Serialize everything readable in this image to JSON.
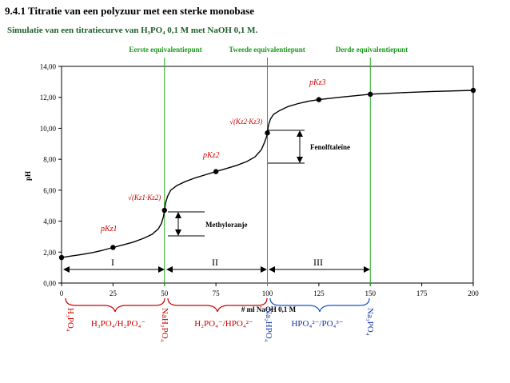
{
  "heading": "9.4.1  Titratie van een polyzuur met een sterke monobase",
  "subtitle": "Simulatie van een titratiecurve van H₃PO₄ 0,1 M met NaOH 0,1 M.",
  "eq_labels": [
    "Eerste equivalentiepunt",
    "Tweede equivalentiepunt",
    "Derde equivalentiepunt"
  ],
  "ylabel": "pH",
  "xlabel": "# ml NaOH 0,1 M",
  "regions": [
    "I",
    "II",
    "III"
  ],
  "indicators": {
    "methyl": "Methyloranje",
    "phenol": "Fenolftaleïne"
  },
  "annotations": {
    "pk1": "pKz1",
    "sqrt12": "√(Kz1·Kz2)",
    "pk2": "pKz2",
    "sqrt23": "√(Kz2·Kz3)",
    "pk3": "pKz3"
  },
  "species": {
    "h3po4": "H₃PO₄",
    "buffer1": "H₃PO₄/H₂PO₄⁻",
    "h2po4": "NaH₂PO₄",
    "buffer2": "H₂PO₄⁻/HPO₄²⁻",
    "hpo4": "Na₂HPO₄",
    "buffer3": "HPO₄²⁻/PO₄³⁻",
    "po4": "Na₃PO₄"
  },
  "colors": {
    "curve": "#000000",
    "eq_line": "#22aa22",
    "eq_text": "#1a9a1a",
    "red_brace": "#cc0000",
    "blue_brace": "#1155cc",
    "species_red": "#cc0000",
    "species_blue": "#1133aa",
    "annotation": "#cc0000"
  },
  "chart_data": {
    "type": "line",
    "xlabel": "# ml NaOH 0,1 M",
    "ylabel": "pH",
    "xlim": [
      0,
      200
    ],
    "ylim": [
      0,
      14
    ],
    "xticks": [
      "0",
      "25",
      "50",
      "75",
      "100",
      "125",
      "150",
      "175",
      "200"
    ],
    "yticks": [
      "0,00",
      "2,00",
      "4,00",
      "6,00",
      "8,00",
      "10,00",
      "12,00",
      "14,00"
    ],
    "equivalence_x": [
      50,
      100,
      150
    ],
    "markers": [
      {
        "x": 0,
        "y": 1.65
      },
      {
        "x": 25,
        "y": 2.3
      },
      {
        "x": 50,
        "y": 4.7
      },
      {
        "x": 75,
        "y": 7.2
      },
      {
        "x": 100,
        "y": 9.7
      },
      {
        "x": 125,
        "y": 11.85
      },
      {
        "x": 150,
        "y": 12.2
      },
      {
        "x": 200,
        "y": 12.45
      }
    ],
    "curve": [
      [
        0,
        1.65
      ],
      [
        5,
        1.75
      ],
      [
        10,
        1.85
      ],
      [
        15,
        1.97
      ],
      [
        20,
        2.12
      ],
      [
        25,
        2.3
      ],
      [
        30,
        2.47
      ],
      [
        35,
        2.65
      ],
      [
        40,
        2.9
      ],
      [
        44,
        3.15
      ],
      [
        47,
        3.5
      ],
      [
        48.5,
        3.85
      ],
      [
        49.5,
        4.3
      ],
      [
        50,
        4.7
      ],
      [
        50.5,
        5.15
      ],
      [
        51.5,
        5.6
      ],
      [
        53,
        6.0
      ],
      [
        56,
        6.3
      ],
      [
        60,
        6.55
      ],
      [
        65,
        6.8
      ],
      [
        70,
        7.0
      ],
      [
        75,
        7.2
      ],
      [
        80,
        7.4
      ],
      [
        85,
        7.6
      ],
      [
        90,
        7.85
      ],
      [
        94,
        8.15
      ],
      [
        97,
        8.6
      ],
      [
        98.5,
        9.05
      ],
      [
        99.5,
        9.4
      ],
      [
        100,
        9.7
      ],
      [
        100.5,
        10.2
      ],
      [
        101.5,
        10.6
      ],
      [
        103,
        10.9
      ],
      [
        106,
        11.15
      ],
      [
        110,
        11.4
      ],
      [
        115,
        11.6
      ],
      [
        120,
        11.75
      ],
      [
        125,
        11.85
      ],
      [
        135,
        12.0
      ],
      [
        150,
        12.2
      ],
      [
        165,
        12.3
      ],
      [
        180,
        12.38
      ],
      [
        200,
        12.45
      ]
    ]
  }
}
